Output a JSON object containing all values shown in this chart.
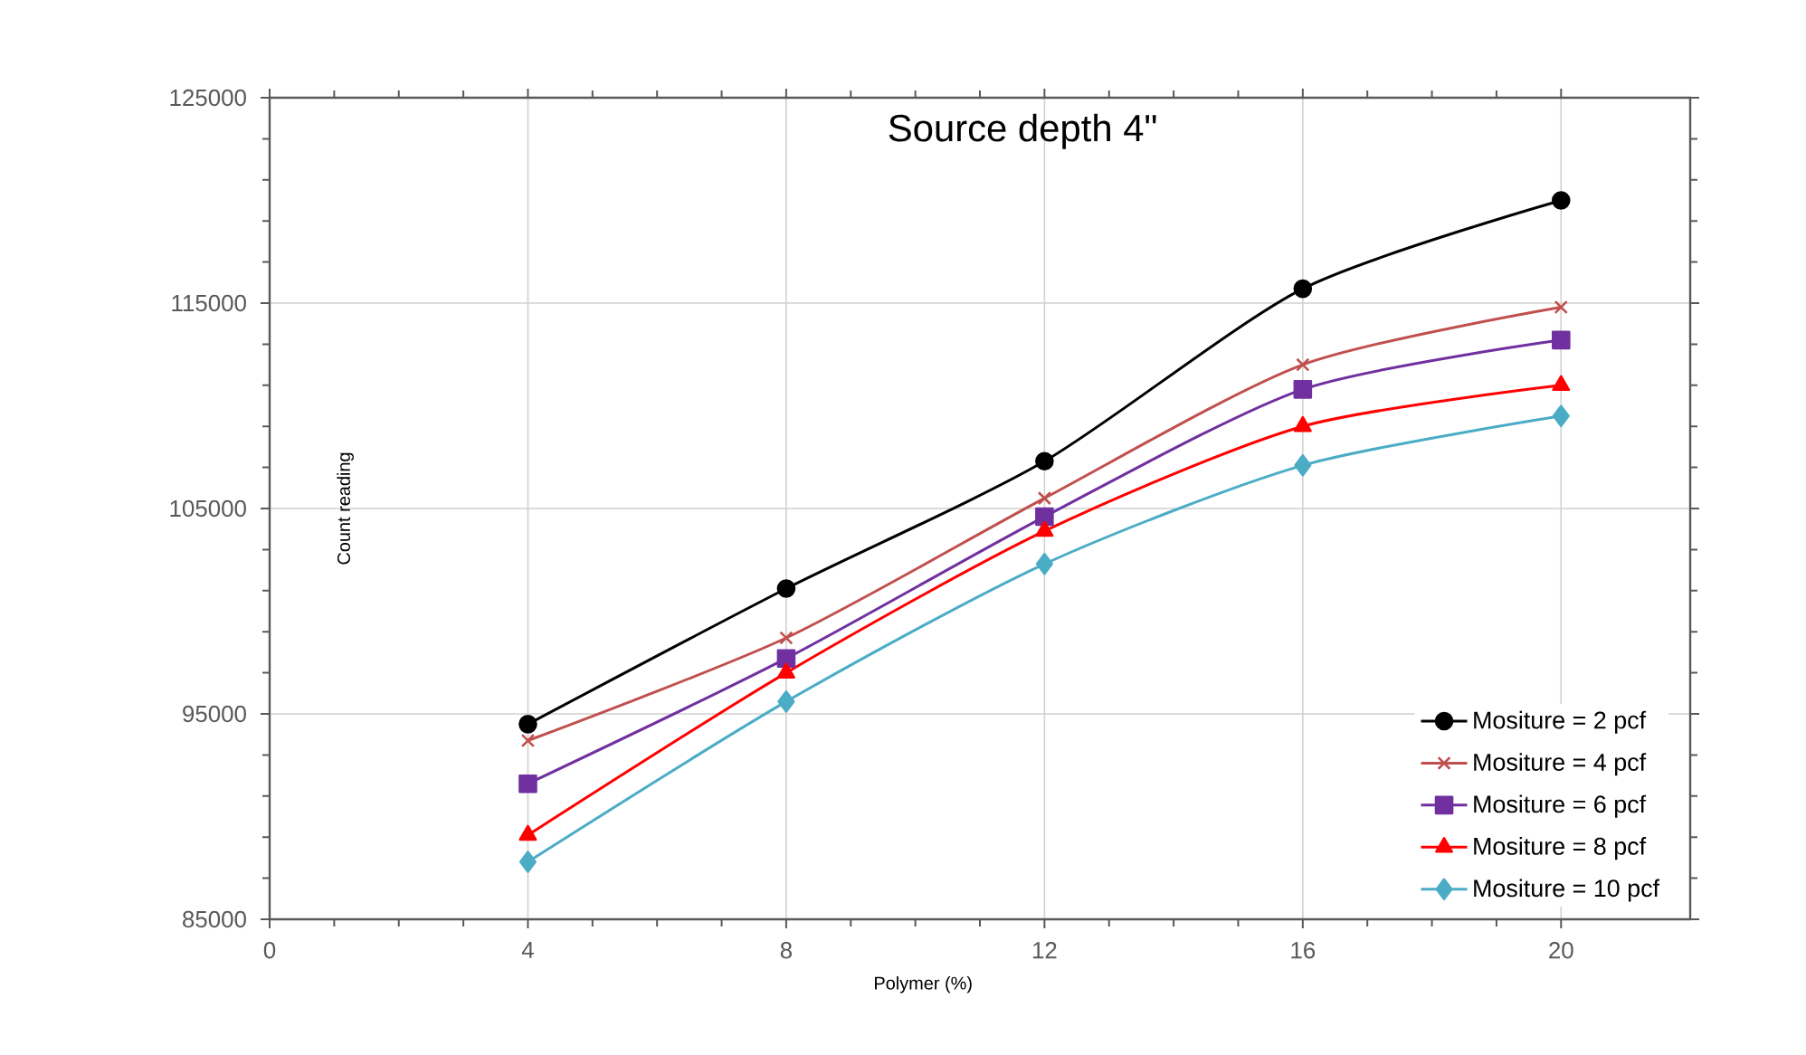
{
  "chart_data": {
    "type": "line",
    "title": "Source depth 4\"",
    "xlabel": "Polymer (%)",
    "ylabel": "Count reading",
    "x": [
      4,
      8,
      12,
      16,
      20
    ],
    "series": [
      {
        "name": "Mositure = 2 pcf",
        "color": "#000000",
        "marker": "circle",
        "values": [
          94500,
          101100,
          107300,
          115700,
          120000
        ]
      },
      {
        "name": "Mositure = 4 pcf",
        "color": "#c0504d",
        "marker": "cross",
        "values": [
          93700,
          98700,
          105500,
          112000,
          114800
        ]
      },
      {
        "name": "Mositure = 6 pcf",
        "color": "#7030a0",
        "marker": "square",
        "values": [
          91600,
          97700,
          104600,
          110800,
          113200
        ]
      },
      {
        "name": "Mositure = 8 pcf",
        "color": "#ff0000",
        "marker": "triangle",
        "values": [
          89100,
          97000,
          103900,
          109000,
          111000
        ]
      },
      {
        "name": "Mositure = 10 pcf",
        "color": "#4bacc6",
        "marker": "diamond",
        "values": [
          87800,
          95600,
          102300,
          107100,
          109500
        ]
      }
    ],
    "xlim": [
      0,
      22
    ],
    "ylim": [
      85000,
      125000
    ],
    "xticks": [
      0,
      4,
      8,
      12,
      16,
      20
    ],
    "yticks": [
      85000,
      95000,
      105000,
      115000,
      125000
    ],
    "grid": true,
    "legend": "bottom right",
    "line_style": "solid"
  }
}
